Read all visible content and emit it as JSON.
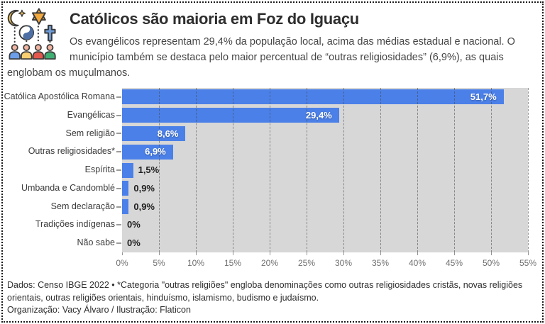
{
  "header": {
    "title": "Católicos são maioria em Foz do Iguaçu",
    "subtitle": "Os evangélicos representam 29,4% da população local, acima das médias estadual e nacional. O município também se destaca pelo maior percentual de “outras religiosidades” (6,9%), as quais englobam os muçulmanos.",
    "icon": "religions-diversity-icon"
  },
  "chart_data": {
    "type": "bar",
    "orientation": "horizontal",
    "title": "",
    "xlabel": "",
    "ylabel": "",
    "categories": [
      "Católica Apostólica Romana",
      "Evangélicas",
      "Sem religião",
      "Outras religiosidades*",
      "Espírita",
      "Umbanda e Candomblé",
      "Sem declaração",
      "Tradições indígenas",
      "Não sabe"
    ],
    "values": [
      51.7,
      29.4,
      8.6,
      6.9,
      1.5,
      0.9,
      0.9,
      0,
      0
    ],
    "value_labels": [
      "51,7%",
      "29,4%",
      "8,6%",
      "6,9%",
      "1,5%",
      "0,9%",
      "0,9%",
      "0%",
      "0%"
    ],
    "x_ticks": [
      "0%",
      "5%",
      "10%",
      "15%",
      "20%",
      "25%",
      "30%",
      "35%",
      "40%",
      "45%",
      "50%",
      "55%"
    ],
    "xlim": [
      0,
      55
    ],
    "grid": true,
    "legend": "none",
    "colors": {
      "bar": "#4b80e8",
      "plot_background": "#d7d7d7",
      "gridline": "rgba(70,70,70,0.55)",
      "inside_label": "#ffffff",
      "outside_label": "#1e1e1e",
      "axis_label": "#6f6f6f"
    }
  },
  "footer": {
    "note": "Dados: Censo IBGE 2022 • *Categoria \"outras religiões\" engloba denominações como outras religiosidades cristãs, novas religiões orientais, outras religiões orientais, hinduísmo, islamismo, budismo e judaísmo.",
    "credits": "Organização: Vacy Álvaro / Ilustração: Flaticon"
  }
}
